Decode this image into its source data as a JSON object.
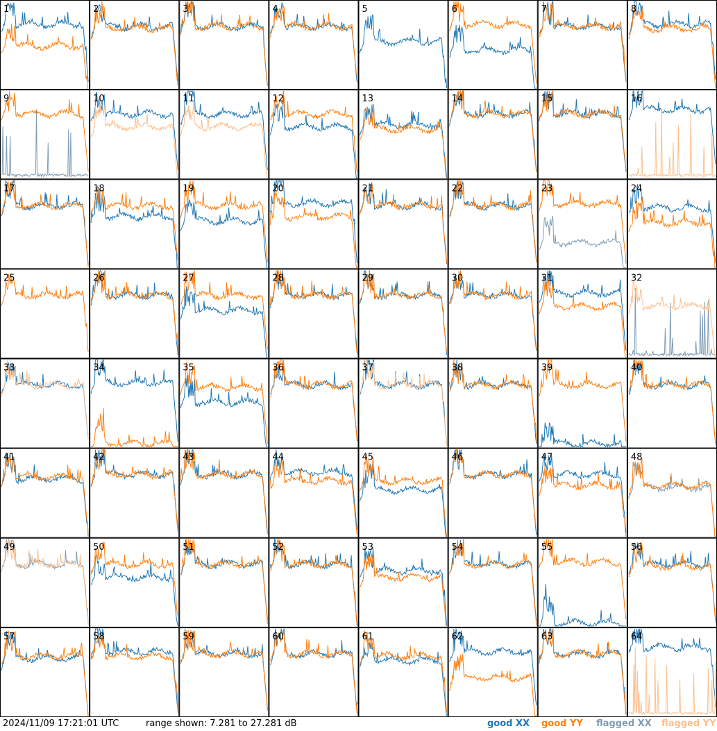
{
  "timestamp": "2024/11/09 17:21:01 UTC",
  "range_label": "range shown: 7.281 to 27.281 dB",
  "legend": {
    "good_xx": "good XX",
    "good_yy": "good YY",
    "flagged_xx": "flagged XX",
    "flagged_yy": "flagged YY"
  },
  "colors": {
    "good_xx": "#1f77b4",
    "good_yy": "#ff7f0e",
    "flagged_xx": "#7f9cb5",
    "flagged_yy": "#fbc08e"
  },
  "chart_data": {
    "type": "line",
    "layout": "8x8 small multiples",
    "ylim_db": [
      7.281,
      27.281
    ],
    "panel_labels": [
      "1",
      "2",
      "3",
      "4",
      "5",
      "6",
      "7",
      "8",
      "9",
      "10",
      "11",
      "12",
      "13",
      "14",
      "15",
      "16",
      "17",
      "18",
      "19",
      "20",
      "21",
      "22",
      "23",
      "24",
      "25",
      "26",
      "27",
      "28",
      "29",
      "30",
      "31",
      "32",
      "33",
      "34",
      "35",
      "36",
      "37",
      "38",
      "39",
      "40",
      "41",
      "42",
      "43",
      "44",
      "45",
      "46",
      "47",
      "48",
      "49",
      "50",
      "51",
      "52",
      "53",
      "54",
      "55",
      "56",
      "57",
      "58",
      "59",
      "60",
      "61",
      "62",
      "63",
      "64"
    ],
    "panels": [
      {
        "xx": "good",
        "yy": "good",
        "xx_baseline_db": 22,
        "yy_baseline_db": 17
      },
      {
        "xx": "good",
        "yy": "good",
        "xx_baseline_db": 21.5,
        "yy_baseline_db": 21
      },
      {
        "xx": "good",
        "yy": "good",
        "xx_baseline_db": 21.5,
        "yy_baseline_db": 21.5
      },
      {
        "xx": "good",
        "yy": "good",
        "xx_baseline_db": 21.5,
        "yy_baseline_db": 21.5
      },
      {
        "xx": "good",
        "yy": "none",
        "xx_baseline_db": 18,
        "yy_baseline_db": null
      },
      {
        "xx": "good",
        "yy": "good",
        "xx_baseline_db": 16,
        "yy_baseline_db": 22
      },
      {
        "xx": "good",
        "yy": "good",
        "xx_baseline_db": 21.5,
        "yy_baseline_db": 21.5
      },
      {
        "xx": "good",
        "yy": "good",
        "xx_baseline_db": 22,
        "yy_baseline_db": 21
      },
      {
        "xx": "flagged",
        "yy": "good",
        "xx_baseline_db": 8,
        "yy_baseline_db": 22
      },
      {
        "xx": "good",
        "yy": "flagged",
        "xx_baseline_db": 22,
        "yy_baseline_db": 19
      },
      {
        "xx": "good",
        "yy": "flagged",
        "xx_baseline_db": 22,
        "yy_baseline_db": 19
      },
      {
        "xx": "good",
        "yy": "good",
        "xx_baseline_db": 19,
        "yy_baseline_db": 22
      },
      {
        "xx": "good",
        "yy": "good",
        "xx_baseline_db": 19.5,
        "yy_baseline_db": 18.5
      },
      {
        "xx": "good",
        "yy": "good",
        "xx_baseline_db": 22,
        "yy_baseline_db": 22
      },
      {
        "xx": "good",
        "yy": "good",
        "xx_baseline_db": 22,
        "yy_baseline_db": 22
      },
      {
        "xx": "good",
        "yy": "flagged",
        "xx_baseline_db": 23,
        "yy_baseline_db": 8
      },
      {
        "xx": "good",
        "yy": "good",
        "xx_baseline_db": 21.5,
        "yy_baseline_db": 21.5
      },
      {
        "xx": "good",
        "yy": "good",
        "xx_baseline_db": 19,
        "yy_baseline_db": 21.5
      },
      {
        "xx": "good",
        "yy": "good",
        "xx_baseline_db": 18,
        "yy_baseline_db": 21.5
      },
      {
        "xx": "good",
        "yy": "good",
        "xx_baseline_db": 22,
        "yy_baseline_db": 19
      },
      {
        "xx": "good",
        "yy": "good",
        "xx_baseline_db": 21.5,
        "yy_baseline_db": 21.5
      },
      {
        "xx": "good",
        "yy": "good",
        "xx_baseline_db": 21.5,
        "yy_baseline_db": 21.5
      },
      {
        "xx": "flagged",
        "yy": "good",
        "xx_baseline_db": 13,
        "yy_baseline_db": 22
      },
      {
        "xx": "good",
        "yy": "good",
        "xx_baseline_db": 21,
        "yy_baseline_db": 17.5
      },
      {
        "xx": "none",
        "yy": "good",
        "xx_baseline_db": null,
        "yy_baseline_db": 21.5
      },
      {
        "xx": "good",
        "yy": "good",
        "xx_baseline_db": 21.5,
        "yy_baseline_db": 21.5
      },
      {
        "xx": "good",
        "yy": "good",
        "xx_baseline_db": 18,
        "yy_baseline_db": 21.5
      },
      {
        "xx": "good",
        "yy": "good",
        "xx_baseline_db": 21.5,
        "yy_baseline_db": 21.5
      },
      {
        "xx": "good",
        "yy": "good",
        "xx_baseline_db": 21.5,
        "yy_baseline_db": 21.5
      },
      {
        "xx": "good",
        "yy": "good",
        "xx_baseline_db": 21.5,
        "yy_baseline_db": 21.5
      },
      {
        "xx": "good",
        "yy": "good",
        "xx_baseline_db": 22,
        "yy_baseline_db": 19
      },
      {
        "xx": "flagged",
        "yy": "flagged",
        "xx_baseline_db": 8,
        "yy_baseline_db": 19
      },
      {
        "xx": "good",
        "yy": "flagged",
        "xx_baseline_db": 21.5,
        "yy_baseline_db": 21.5
      },
      {
        "xx": "good",
        "yy": "good",
        "xx_baseline_db": 22,
        "yy_baseline_db": 8
      },
      {
        "xx": "good",
        "yy": "good",
        "xx_baseline_db": 17.5,
        "yy_baseline_db": 21
      },
      {
        "xx": "good",
        "yy": "good",
        "xx_baseline_db": 21.5,
        "yy_baseline_db": 21.5
      },
      {
        "xx": "good",
        "yy": "flagged",
        "xx_baseline_db": 21.5,
        "yy_baseline_db": 21.5
      },
      {
        "xx": "good",
        "yy": "good",
        "xx_baseline_db": 21.5,
        "yy_baseline_db": 21.5
      },
      {
        "xx": "good",
        "yy": "good",
        "xx_baseline_db": 8,
        "yy_baseline_db": 21.5
      },
      {
        "xx": "good",
        "yy": "good",
        "xx_baseline_db": 21.5,
        "yy_baseline_db": 21.5
      },
      {
        "xx": "good",
        "yy": "good",
        "xx_baseline_db": 20.5,
        "yy_baseline_db": 21
      },
      {
        "xx": "good",
        "yy": "good",
        "xx_baseline_db": 21.5,
        "yy_baseline_db": 21.5
      },
      {
        "xx": "good",
        "yy": "good",
        "xx_baseline_db": 21.5,
        "yy_baseline_db": 21.5
      },
      {
        "xx": "good",
        "yy": "good",
        "xx_baseline_db": 22,
        "yy_baseline_db": 20
      },
      {
        "xx": "good",
        "yy": "good",
        "xx_baseline_db": 18,
        "yy_baseline_db": 20
      },
      {
        "xx": "good",
        "yy": "good",
        "xx_baseline_db": 21.5,
        "yy_baseline_db": 21.5
      },
      {
        "xx": "good",
        "yy": "good",
        "xx_baseline_db": 21.5,
        "yy_baseline_db": 19
      },
      {
        "xx": "flagged",
        "yy": "good",
        "xx_baseline_db": 18.5,
        "yy_baseline_db": 19
      },
      {
        "xx": "flagged",
        "yy": "flagged",
        "xx_baseline_db": 21.5,
        "yy_baseline_db": 21.5
      },
      {
        "xx": "good",
        "yy": "good",
        "xx_baseline_db": 18.5,
        "yy_baseline_db": 21.5
      },
      {
        "xx": "good",
        "yy": "good",
        "xx_baseline_db": 21.5,
        "yy_baseline_db": 21.5
      },
      {
        "xx": "good",
        "yy": "good",
        "xx_baseline_db": 21.5,
        "yy_baseline_db": 21.5
      },
      {
        "xx": "good",
        "yy": "good",
        "xx_baseline_db": 20,
        "yy_baseline_db": 18.5
      },
      {
        "xx": "good",
        "yy": "good",
        "xx_baseline_db": 21.5,
        "yy_baseline_db": 21.5
      },
      {
        "xx": "good",
        "yy": "good",
        "xx_baseline_db": 8,
        "yy_baseline_db": 22
      },
      {
        "xx": "good",
        "yy": "good",
        "xx_baseline_db": 21.5,
        "yy_baseline_db": 21
      },
      {
        "xx": "good",
        "yy": "good",
        "xx_baseline_db": 20.5,
        "yy_baseline_db": 21
      },
      {
        "xx": "good",
        "yy": "good",
        "xx_baseline_db": 22,
        "yy_baseline_db": 21
      },
      {
        "xx": "good",
        "yy": "good",
        "xx_baseline_db": 21.5,
        "yy_baseline_db": 21.5
      },
      {
        "xx": "good",
        "yy": "good",
        "xx_baseline_db": 21.5,
        "yy_baseline_db": 21.5
      },
      {
        "xx": "good",
        "yy": "good",
        "xx_baseline_db": 20,
        "yy_baseline_db": 21
      },
      {
        "xx": "good",
        "yy": "good",
        "xx_baseline_db": 22,
        "yy_baseline_db": 16
      },
      {
        "xx": "good",
        "yy": "good",
        "xx_baseline_db": 21.5,
        "yy_baseline_db": 21.5
      },
      {
        "xx": "good",
        "yy": "flagged",
        "xx_baseline_db": 23,
        "yy_baseline_db": 8
      }
    ]
  }
}
